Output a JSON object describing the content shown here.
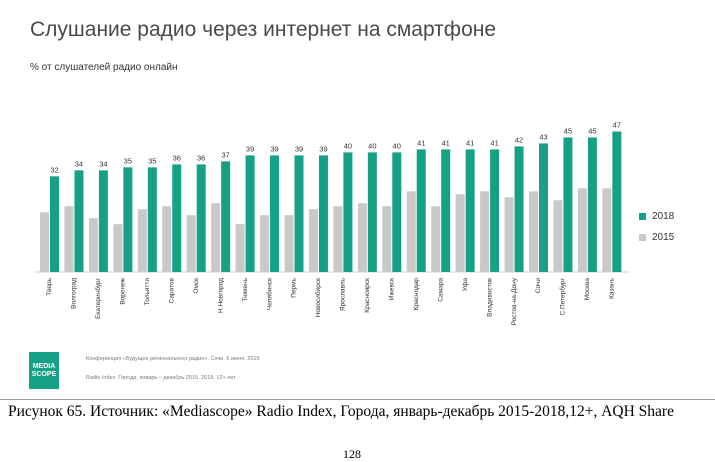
{
  "slide": {
    "title": "Слушание радио через интернет на смартфоне",
    "subtitle": "% от слушателей радио онлайн",
    "footer_line1": "Конференция «Будущее регионального радио». Сочи, 6 июня, 2019",
    "footer_line2": "Radio Index. Города, январь – декабрь 2015, 2018, 12+ лет",
    "logo_text": "MEDIA SCOPE"
  },
  "caption": {
    "text": "Рисунок 65.  Источник: «Mediascope» Radio Index, Города, январь-декабрь 2015-2018,12+, AQH Share"
  },
  "page_number": "128",
  "colors": {
    "series_2018": "#16a085",
    "series_2015": "#c9c9c9"
  },
  "chart_data": {
    "type": "bar",
    "title": "Слушание радио через интернет на смартфоне",
    "subtitle": "% от слушателей радио онлайн",
    "categories": [
      "Тверь",
      "Волгоград",
      "Екатеринбург",
      "Воронеж",
      "Тольятти",
      "Саратов",
      "Омск",
      "Н.Новгород",
      "Тюмень",
      "Челябинск",
      "Пермь",
      "Новосибирск",
      "Ярославль",
      "Красноярск",
      "Ижевск",
      "Краснодар",
      "Самара",
      "Уфа",
      "Владивосток",
      "Ростов-на-Дону",
      "Сочи",
      "С.Петербург",
      "Москва",
      "Казань"
    ],
    "series": [
      {
        "name": "2018",
        "values": [
          32,
          34,
          34,
          35,
          35,
          36,
          36,
          37,
          39,
          39,
          39,
          39,
          40,
          40,
          40,
          41,
          41,
          41,
          41,
          42,
          43,
          45,
          45,
          47
        ],
        "data_labels": true
      },
      {
        "name": "2015",
        "values": [
          20,
          22,
          18,
          16,
          21,
          22,
          19,
          23,
          16,
          19,
          19,
          21,
          22,
          23,
          22,
          27,
          22,
          26,
          27,
          25,
          27,
          24,
          28,
          28
        ],
        "data_labels": false
      }
    ],
    "legend": {
      "position": "right",
      "entries": [
        "2018",
        "2015"
      ]
    },
    "grid": false,
    "ylim": [
      0,
      50
    ]
  }
}
